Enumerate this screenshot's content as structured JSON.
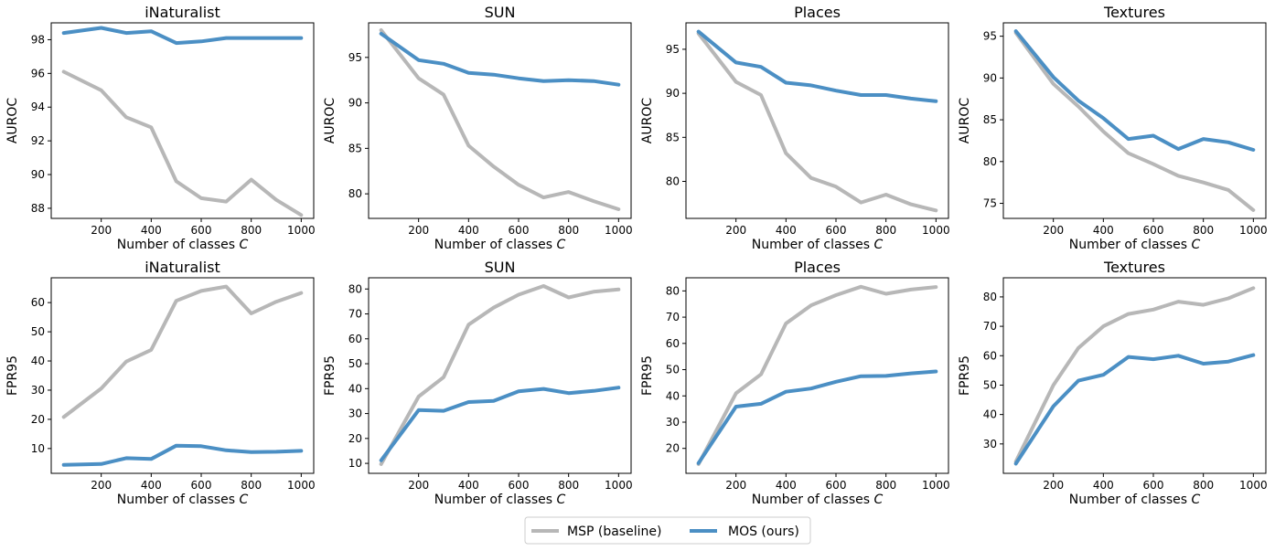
{
  "legend": {
    "position": "bottom-center",
    "entries": [
      {
        "label": "MSP (baseline)",
        "color": "#b7b7b7"
      },
      {
        "label": "MOS (ours)",
        "color": "#4b8fc4"
      }
    ]
  },
  "chart_data": [
    {
      "type": "line",
      "title": "iNaturalist",
      "xlabel": "Number of classes C",
      "ylabel": "AUROC",
      "x": [
        50,
        200,
        300,
        400,
        500,
        600,
        700,
        800,
        900,
        1000
      ],
      "xlim": [
        0,
        1050
      ],
      "ylim": [
        87.4,
        99.0
      ],
      "xticks": [
        200,
        400,
        600,
        800,
        1000
      ],
      "yticks": [
        88,
        90,
        92,
        94,
        96,
        98
      ],
      "series": [
        {
          "name": "MSP (baseline)",
          "color": "#b7b7b7",
          "values": [
            96.1,
            95.0,
            93.4,
            92.8,
            89.6,
            88.6,
            88.4,
            89.7,
            88.5,
            87.6
          ]
        },
        {
          "name": "MOS (ours)",
          "color": "#4b8fc4",
          "values": [
            98.4,
            98.7,
            98.4,
            98.5,
            97.8,
            97.9,
            98.1,
            98.1,
            98.1,
            98.1
          ]
        }
      ]
    },
    {
      "type": "line",
      "title": "SUN",
      "xlabel": "Number of classes C",
      "ylabel": "AUROC",
      "x": [
        50,
        200,
        300,
        400,
        500,
        600,
        700,
        800,
        900,
        1000
      ],
      "xlim": [
        0,
        1050
      ],
      "ylim": [
        77.3,
        98.8
      ],
      "xticks": [
        200,
        400,
        600,
        800,
        1000
      ],
      "yticks": [
        80,
        85,
        90,
        95
      ],
      "series": [
        {
          "name": "MSP (baseline)",
          "color": "#b7b7b7",
          "values": [
            98.0,
            92.7,
            90.9,
            85.3,
            83.0,
            81.0,
            79.6,
            80.2,
            79.2,
            78.3
          ]
        },
        {
          "name": "MOS (ours)",
          "color": "#4b8fc4",
          "values": [
            97.6,
            94.7,
            94.3,
            93.3,
            93.1,
            92.7,
            92.4,
            92.5,
            92.4,
            92.0
          ]
        }
      ]
    },
    {
      "type": "line",
      "title": "Places",
      "xlabel": "Number of classes C",
      "ylabel": "AUROC",
      "x": [
        50,
        200,
        300,
        400,
        500,
        600,
        700,
        800,
        900,
        1000
      ],
      "xlim": [
        0,
        1050
      ],
      "ylim": [
        75.8,
        98.0
      ],
      "xticks": [
        200,
        400,
        600,
        800,
        1000
      ],
      "yticks": [
        80,
        85,
        90,
        95
      ],
      "series": [
        {
          "name": "MSP (baseline)",
          "color": "#b7b7b7",
          "values": [
            96.8,
            91.3,
            89.8,
            83.2,
            80.4,
            79.4,
            77.6,
            78.5,
            77.4,
            76.7
          ]
        },
        {
          "name": "MOS (ours)",
          "color": "#4b8fc4",
          "values": [
            97.0,
            93.5,
            93.0,
            91.2,
            90.9,
            90.3,
            89.8,
            89.8,
            89.4,
            89.1
          ]
        }
      ]
    },
    {
      "type": "line",
      "title": "Textures",
      "xlabel": "Number of classes C",
      "ylabel": "AUROC",
      "x": [
        50,
        200,
        300,
        400,
        500,
        600,
        700,
        800,
        900,
        1000
      ],
      "xlim": [
        0,
        1050
      ],
      "ylim": [
        73.2,
        96.6
      ],
      "xticks": [
        200,
        400,
        600,
        800,
        1000
      ],
      "yticks": [
        75,
        80,
        85,
        90,
        95
      ],
      "series": [
        {
          "name": "MSP (baseline)",
          "color": "#b7b7b7",
          "values": [
            95.4,
            89.3,
            86.6,
            83.6,
            81.0,
            79.7,
            78.3,
            77.5,
            76.6,
            74.2
          ]
        },
        {
          "name": "MOS (ours)",
          "color": "#4b8fc4",
          "values": [
            95.6,
            90.1,
            87.3,
            85.2,
            82.7,
            83.1,
            81.5,
            82.7,
            82.3,
            81.4
          ]
        }
      ]
    },
    {
      "type": "line",
      "title": "iNaturalist",
      "xlabel": "Number of classes C",
      "ylabel": "FPR95",
      "x": [
        50,
        200,
        300,
        400,
        500,
        600,
        700,
        800,
        900,
        1000
      ],
      "xlim": [
        0,
        1050
      ],
      "ylim": [
        1.5,
        68.5
      ],
      "xticks": [
        200,
        400,
        600,
        800,
        1000
      ],
      "yticks": [
        10,
        20,
        30,
        40,
        50,
        60
      ],
      "series": [
        {
          "name": "MSP (baseline)",
          "color": "#b7b7b7",
          "values": [
            20.8,
            30.6,
            39.8,
            43.8,
            60.6,
            64.0,
            65.5,
            56.3,
            60.3,
            63.3
          ]
        },
        {
          "name": "MOS (ours)",
          "color": "#4b8fc4",
          "values": [
            4.4,
            4.7,
            6.7,
            6.4,
            11.0,
            10.8,
            9.4,
            8.8,
            8.9,
            9.2
          ]
        }
      ]
    },
    {
      "type": "line",
      "title": "SUN",
      "xlabel": "Number of classes C",
      "ylabel": "FPR95",
      "x": [
        50,
        200,
        300,
        400,
        500,
        600,
        700,
        800,
        900,
        1000
      ],
      "xlim": [
        0,
        1050
      ],
      "ylim": [
        6.0,
        84.5
      ],
      "xticks": [
        200,
        400,
        600,
        800,
        1000
      ],
      "yticks": [
        10,
        20,
        30,
        40,
        50,
        60,
        70,
        80
      ],
      "series": [
        {
          "name": "MSP (baseline)",
          "color": "#b7b7b7",
          "values": [
            9.7,
            36.8,
            44.6,
            65.7,
            72.5,
            77.7,
            81.2,
            76.6,
            78.9,
            79.8
          ]
        },
        {
          "name": "MOS (ours)",
          "color": "#4b8fc4",
          "values": [
            11.2,
            31.4,
            31.1,
            34.6,
            35.1,
            38.9,
            39.9,
            38.2,
            39.1,
            40.4
          ]
        }
      ]
    },
    {
      "type": "line",
      "title": "Places",
      "xlabel": "Number of classes C",
      "ylabel": "FPR95",
      "x": [
        50,
        200,
        300,
        400,
        500,
        600,
        700,
        800,
        900,
        1000
      ],
      "xlim": [
        0,
        1050
      ],
      "ylim": [
        10.5,
        85.0
      ],
      "xticks": [
        200,
        400,
        600,
        800,
        1000
      ],
      "yticks": [
        20,
        30,
        40,
        50,
        60,
        70,
        80
      ],
      "series": [
        {
          "name": "MSP (baseline)",
          "color": "#b7b7b7",
          "values": [
            14.0,
            41.0,
            48.2,
            67.6,
            74.5,
            78.4,
            81.6,
            78.9,
            80.5,
            81.5
          ]
        },
        {
          "name": "MOS (ours)",
          "color": "#4b8fc4",
          "values": [
            14.4,
            35.9,
            37.0,
            41.6,
            42.8,
            45.4,
            47.5,
            47.6,
            48.6,
            49.3
          ]
        }
      ]
    },
    {
      "type": "line",
      "title": "Textures",
      "xlabel": "Number of classes C",
      "ylabel": "FPR95",
      "x": [
        50,
        200,
        300,
        400,
        500,
        600,
        700,
        800,
        900,
        1000
      ],
      "xlim": [
        0,
        1050
      ],
      "ylim": [
        20.0,
        86.5
      ],
      "xticks": [
        200,
        400,
        600,
        800,
        1000
      ],
      "yticks": [
        30,
        40,
        50,
        60,
        70,
        80
      ],
      "series": [
        {
          "name": "MSP (baseline)",
          "color": "#b7b7b7",
          "values": [
            24.0,
            50.0,
            62.6,
            70.0,
            74.2,
            75.7,
            78.4,
            77.3,
            79.5,
            83.0
          ]
        },
        {
          "name": "MOS (ours)",
          "color": "#4b8fc4",
          "values": [
            23.3,
            42.8,
            51.5,
            53.5,
            59.6,
            58.8,
            60.0,
            57.3,
            58.0,
            60.2
          ]
        }
      ]
    }
  ]
}
